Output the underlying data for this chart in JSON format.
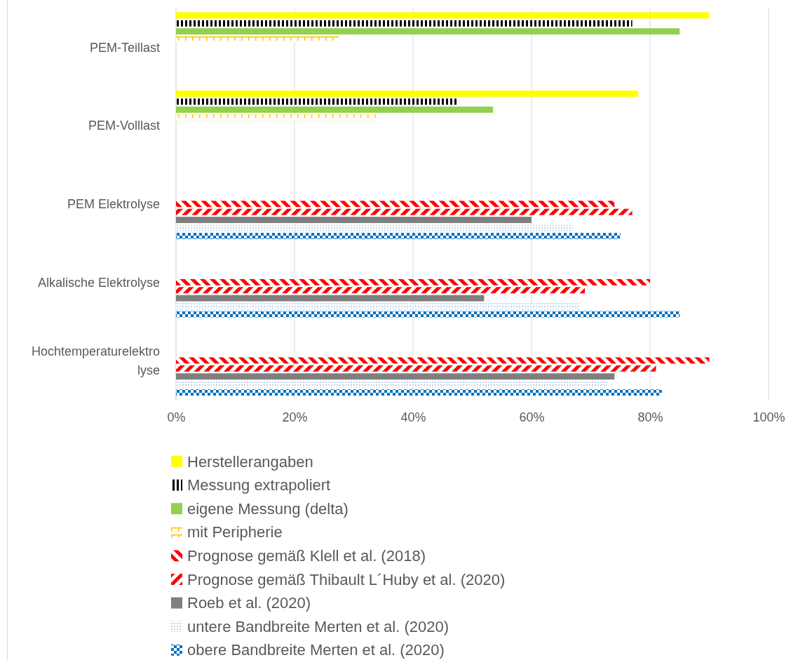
{
  "chart_data": {
    "type": "bar",
    "orientation": "horizontal",
    "categories": [
      "PEM-Teillast",
      "PEM-Volllast",
      "PEM Elektrolyse",
      "Alkalische Elektrolyse",
      "Hochtemperaturelektrolyse"
    ],
    "xlim": [
      0,
      100
    ],
    "xticks": [
      {
        "value": 0,
        "label": "0%"
      },
      {
        "value": 20,
        "label": "20%"
      },
      {
        "value": 40,
        "label": "40%"
      },
      {
        "value": 60,
        "label": "60%"
      },
      {
        "value": 80,
        "label": "80%"
      },
      {
        "value": 100,
        "label": "100%"
      }
    ],
    "grid": "x",
    "legend": "bottom",
    "series": [
      {
        "name": "Herstellerangaben",
        "color": "#ffff00",
        "values": [
          90,
          78,
          null,
          null,
          null
        ]
      },
      {
        "name": "Messung extrapoliert",
        "color": "#000000",
        "values": [
          77,
          47.5,
          null,
          null,
          null
        ]
      },
      {
        "name": "eigene Messung (delta)",
        "color": "#92d050",
        "values": [
          85,
          53.5,
          null,
          null,
          null
        ]
      },
      {
        "name": "mit Peripherie",
        "color": "#ffc000",
        "values": [
          27.5,
          34,
          null,
          null,
          null
        ]
      },
      {
        "name": "Prognose gemäß Klell et al. (2018)",
        "color": "#ff0000",
        "values": [
          null,
          null,
          74,
          80,
          90
        ]
      },
      {
        "name": "Prognose gemäß Thibault L´Huby et al. (2020)",
        "color": "#ff0000",
        "values": [
          null,
          null,
          77,
          69,
          81
        ]
      },
      {
        "name": "Roeb et al. (2020)",
        "color": "#7f7f7f",
        "values": [
          null,
          null,
          60,
          52,
          74
        ]
      },
      {
        "name": "untere Bandbreite Merten et al. (2020)",
        "color": "#5b9bd5",
        "values": [
          null,
          null,
          67,
          68,
          73
        ]
      },
      {
        "name": "obere Bandbreite Merten et al. (2020)",
        "color": "#0070c0",
        "values": [
          null,
          null,
          75,
          85,
          82
        ]
      }
    ]
  }
}
